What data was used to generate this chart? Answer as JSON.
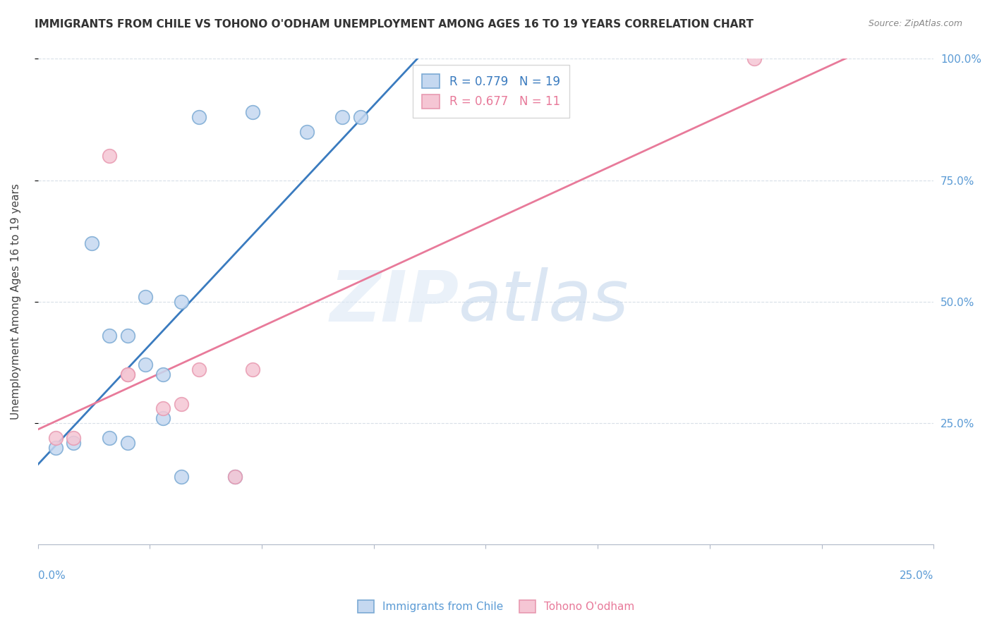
{
  "title": "IMMIGRANTS FROM CHILE VS TOHONO O'ODHAM UNEMPLOYMENT AMONG AGES 16 TO 19 YEARS CORRELATION CHART",
  "source": "Source: ZipAtlas.com",
  "ylabel": "Unemployment Among Ages 16 to 19 years",
  "legend1_label": "R = 0.779   N = 19",
  "legend2_label": "R = 0.677   N = 11",
  "blue_line_color": "#3a7bbf",
  "pink_line_color": "#e87a9a",
  "blue_scatter_facecolor": "#c5d8f0",
  "blue_scatter_edgecolor": "#7baad4",
  "pink_scatter_facecolor": "#f5c6d4",
  "pink_scatter_edgecolor": "#e899b0",
  "blue_points_x": [
    0.5,
    1.0,
    1.5,
    2.0,
    2.0,
    2.5,
    2.5,
    3.0,
    3.0,
    3.5,
    3.5,
    4.0,
    4.0,
    4.5,
    5.5,
    6.0,
    7.5,
    8.5,
    9.0
  ],
  "blue_points_y": [
    20,
    21,
    62,
    43,
    22,
    21,
    43,
    51,
    37,
    35,
    26,
    14,
    50,
    88,
    14,
    89,
    85,
    88,
    88
  ],
  "pink_points_x": [
    0.5,
    1.0,
    2.0,
    2.5,
    2.5,
    3.5,
    4.0,
    4.5,
    5.5,
    6.0,
    20.0
  ],
  "pink_points_y": [
    22,
    22,
    80,
    35,
    35,
    28,
    29,
    36,
    14,
    36,
    100
  ],
  "xlim_min": 0,
  "xlim_max": 25,
  "ylim_min": 0,
  "ylim_max": 100,
  "right_ytick_labels": [
    "25.0%",
    "50.0%",
    "75.0%",
    "100.0%"
  ],
  "right_ytick_vals": [
    25,
    50,
    75,
    100
  ],
  "xtick_label_left": "0.0%",
  "xtick_label_right": "25.0%",
  "grid_color": "#d8dfe8",
  "tick_color": "#b0b8c8",
  "label_color": "#5b9bd5",
  "title_color": "#333333",
  "source_color": "#888888",
  "watermark_zip_color": "#dce8f5",
  "watermark_atlas_color": "#b8cfe8"
}
